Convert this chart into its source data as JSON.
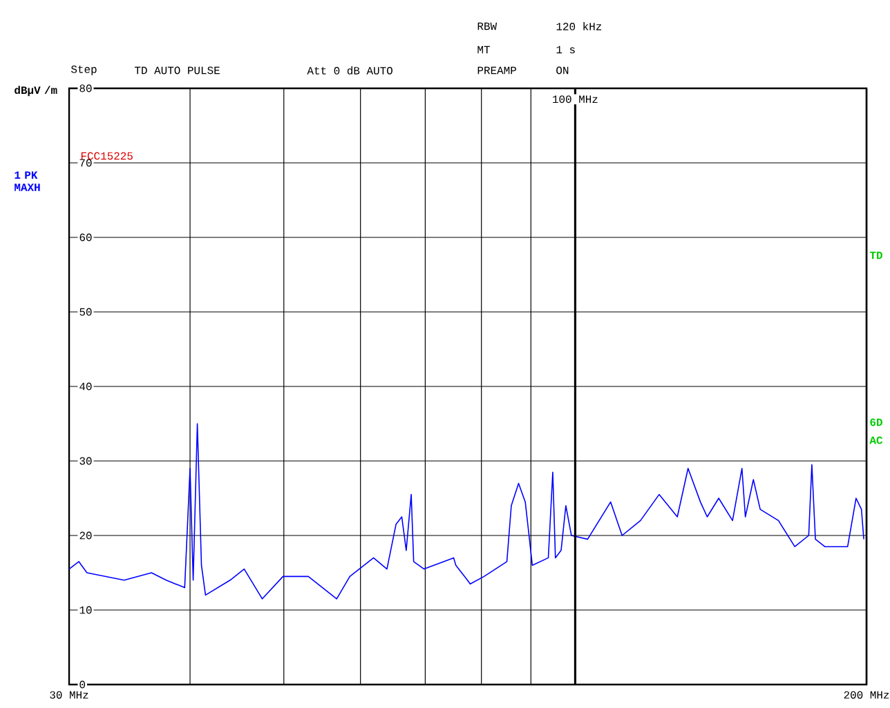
{
  "chart_data": {
    "type": "line",
    "ylabel": "dBµV /m",
    "annotations": [
      "RBW",
      "120 kHz",
      "MT",
      "1 s",
      "Step",
      "TD AUTO PULSE",
      "Att 0 dB AUTO",
      "PREAMP",
      "ON",
      "FCC15225",
      "TD",
      "6D",
      "AC"
    ],
    "x": [
      30.0,
      30.7,
      31.3,
      34.2,
      36.5,
      37.8,
      39.5,
      40.0,
      40.3,
      40.7,
      41.1,
      41.5,
      44.0,
      45.5,
      47.5,
      49.9,
      53.0,
      56.7,
      58.5,
      61.9,
      63.9,
      65.3,
      66.2,
      66.9,
      67.7,
      68.1,
      69.8,
      74.9,
      75.3,
      77.4,
      77.9,
      80.5,
      85.0,
      85.9,
      87.4,
      88.8,
      89.6,
      90.3,
      93.8,
      94.8,
      95.4,
      96.7,
      97.8,
      99.1,
      103.0,
      108.8,
      111.8,
      116.8,
      122.1,
      127.5,
      130.8,
      134.7,
      136.9,
      140.7,
      145.4,
      148.7,
      149.9,
      152.8,
      155.3,
      162.2,
      168.6,
      174.3,
      175.6,
      177.1,
      181.1,
      191.2,
      195.1,
      197.6,
      198.7
    ],
    "series": [
      {
        "name": "1 PK MAXH",
        "color": "#0000ff",
        "values": [
          15.5,
          16.5,
          15,
          14,
          15,
          14,
          13,
          29,
          14,
          35,
          16,
          12,
          14,
          15.5,
          11.5,
          14.5,
          14.5,
          11.5,
          14.5,
          17,
          15.5,
          21.5,
          22.5,
          18,
          25.5,
          16.5,
          15.5,
          17,
          16,
          14,
          13.5,
          14.5,
          16.5,
          24,
          27,
          24.5,
          20,
          16,
          17,
          28.5,
          17,
          18,
          24,
          20,
          19.5,
          24.5,
          20,
          22,
          25.5,
          22.5,
          29,
          24.5,
          22.5,
          25,
          22,
          29,
          22.5,
          27.5,
          23.5,
          22,
          18.5,
          20,
          29.5,
          19.5,
          18.5,
          18.5,
          25,
          23.5,
          19.5
        ]
      }
    ],
    "xlim": [
      30,
      200
    ],
    "xticks": [
      {
        "value": 30,
        "label": "30 MHz"
      },
      {
        "value": 40,
        "label": null
      },
      {
        "value": 50,
        "label": null
      },
      {
        "value": 60,
        "label": null
      },
      {
        "value": 70,
        "label": null
      },
      {
        "value": 80,
        "label": null
      },
      {
        "value": 90,
        "label": null
      },
      {
        "value": 200,
        "label": "200 MHz"
      }
    ],
    "ylim": [
      0,
      80
    ],
    "yticks": [
      0,
      10,
      20,
      30,
      40,
      50,
      60,
      70,
      80
    ],
    "ref_lines": [
      {
        "axis": "x",
        "value": 100,
        "label": "100 MHz"
      }
    ],
    "log": "x",
    "grid": true
  }
}
